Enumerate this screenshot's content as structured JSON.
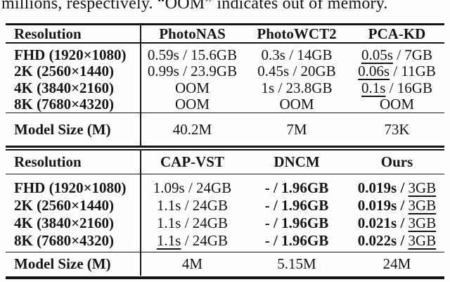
{
  "caption": "millions, respectively. “OOM” indicates out of memory.",
  "colors": {
    "text": "#151515",
    "rule": "#151515",
    "background": "#fefefe"
  },
  "tables": [
    {
      "name": "runtime-memory-baselines-part1",
      "header": {
        "label": "Resolution",
        "columns": [
          "PhotoNAS",
          "PhotoWCT2",
          "PCA-KD"
        ]
      },
      "rows": [
        {
          "label": "FHD (1920×1080)",
          "cells": [
            [
              {
                "t": "0.59s / 15.6GB"
              }
            ],
            [
              {
                "t": "0.3s / 14GB"
              }
            ],
            [
              {
                "t": "0.05s",
                "u": true
              },
              {
                "t": " / 7GB"
              }
            ]
          ]
        },
        {
          "label": "2K (2560×1440)",
          "cells": [
            [
              {
                "t": "0.99s / 23.9GB"
              }
            ],
            [
              {
                "t": "0.45s / 20GB"
              }
            ],
            [
              {
                "t": "0.06s",
                "u": true
              },
              {
                "t": " / 11GB"
              }
            ]
          ]
        },
        {
          "label": "4K (3840×2160)",
          "cells": [
            [
              {
                "t": "OOM"
              }
            ],
            [
              {
                "t": "1s / 23.8GB"
              }
            ],
            [
              {
                "t": "0.1s",
                "u": true
              },
              {
                "t": " / 16GB"
              }
            ]
          ]
        },
        {
          "label": "8K (7680×4320)",
          "cells": [
            [
              {
                "t": "OOM"
              }
            ],
            [
              {
                "t": "OOM"
              }
            ],
            [
              {
                "t": "OOM"
              }
            ]
          ]
        }
      ],
      "footer": {
        "label": "Model Size (M)",
        "cells": [
          [
            {
              "t": "40.2M"
            }
          ],
          [
            {
              "t": "7M"
            }
          ],
          [
            {
              "t": "73K"
            }
          ]
        ]
      }
    },
    {
      "name": "runtime-memory-baselines-part2",
      "header": {
        "label": "Resolution",
        "columns": [
          "CAP-VST",
          "DNCM",
          "Ours"
        ]
      },
      "rows": [
        {
          "label": "FHD (1920×1080)",
          "cells": [
            [
              {
                "t": "1.09s / 24GB"
              }
            ],
            [
              {
                "t": "- / 1.96GB",
                "b": true
              }
            ],
            [
              {
                "t": "0.019s / ",
                "b": true
              },
              {
                "t": "3GB",
                "u": true
              }
            ]
          ]
        },
        {
          "label": "2K (2560×1440)",
          "cells": [
            [
              {
                "t": "1.1s / 24GB"
              }
            ],
            [
              {
                "t": "- / 1.96GB",
                "b": true
              }
            ],
            [
              {
                "t": "0.019s / ",
                "b": true
              },
              {
                "t": "3GB",
                "u": true
              }
            ]
          ]
        },
        {
          "label": "4K (3840×2160)",
          "cells": [
            [
              {
                "t": "1.1s / 24GB"
              }
            ],
            [
              {
                "t": "- / 1.96GB",
                "b": true
              }
            ],
            [
              {
                "t": "0.021s / ",
                "b": true
              },
              {
                "t": "3GB",
                "u": true
              }
            ]
          ]
        },
        {
          "label": "8K (7680×4320)",
          "cells": [
            [
              {
                "t": "1.1s",
                "u": true
              },
              {
                "t": " / 24GB"
              }
            ],
            [
              {
                "t": "- / 1.96GB",
                "b": true
              }
            ],
            [
              {
                "t": "0.022s / ",
                "b": true
              },
              {
                "t": "3GB",
                "u": true
              }
            ]
          ]
        }
      ],
      "footer": {
        "label": "Model Size (M)",
        "cells": [
          [
            {
              "t": "4M"
            }
          ],
          [
            {
              "t": "5.15M"
            }
          ],
          [
            {
              "t": "24M"
            }
          ]
        ]
      }
    }
  ]
}
